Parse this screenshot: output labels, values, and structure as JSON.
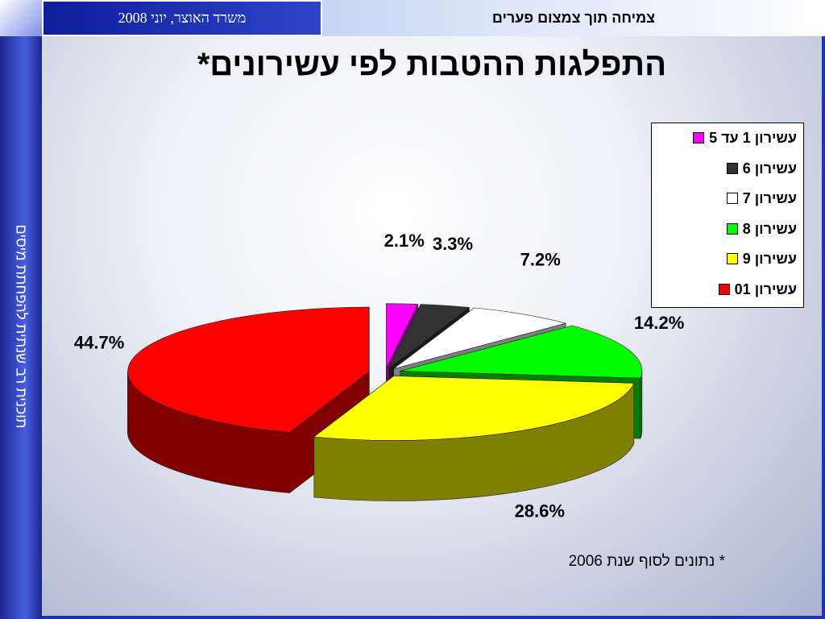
{
  "header": {
    "title": "צמיחה תוך צמצום פערים",
    "org": "משרד האוצר, יוני 2008"
  },
  "sidebar": "תוכנית רב שנתית להפחתת מיסים",
  "chart_data": {
    "type": "pie",
    "title": "התפלגות ההטבות לפי עשירונים*",
    "categories": [
      "עשירון 1 עד 5",
      "עשירון 6",
      "עשירון 7",
      "עשירון 8",
      "עשירון 9",
      "עשירון 01"
    ],
    "values": [
      2.1,
      3.3,
      7.2,
      14.2,
      28.6,
      44.7
    ],
    "value_labels": [
      "2.1%",
      "3.3%",
      "7.2%",
      "14.2%",
      "28.6%",
      "44.7%"
    ],
    "colors": [
      "#ff00ff",
      "#333333",
      "#ffffff",
      "#00ff00",
      "#ffff00",
      "#ff0000"
    ],
    "legend": "right",
    "three_d": true,
    "footnote": "* נתונים לסוף שנת 2006"
  }
}
